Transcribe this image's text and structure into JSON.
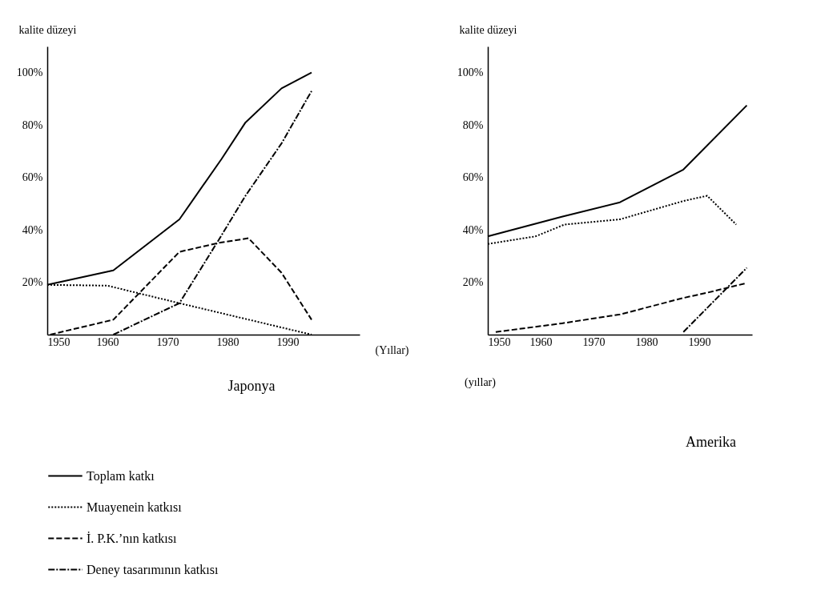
{
  "chart_data": [
    {
      "type": "line",
      "title": "Japonya",
      "xlabel": "(Yıllar)",
      "ylabel": "kalite düzeyi",
      "xlim": [
        1950,
        2002
      ],
      "ylim": [
        0,
        110
      ],
      "xticks": [
        1950,
        1960,
        1970,
        1980,
        1990
      ],
      "yticks": [
        {
          "value": 20,
          "label": "20%"
        },
        {
          "value": 40,
          "label": "40%"
        },
        {
          "value": 60,
          "label": "60%"
        },
        {
          "value": 80,
          "label": "80%"
        },
        {
          "value": 100,
          "label": "100%"
        }
      ],
      "grid": false,
      "legend": "bottom",
      "series": [
        {
          "name": "Toplam katkı",
          "color": "#000000",
          "line_style": "solid",
          "x": [
            1950,
            1961,
            1972,
            1979,
            1983,
            1989,
            1994
          ],
          "values": [
            19,
            24.5,
            44,
            67,
            81,
            94,
            100
          ]
        },
        {
          "name": "Muayenein katkısı",
          "color": "#000000",
          "line_style": "dotted",
          "x": [
            1950,
            1960,
            1972,
            1983,
            1994
          ],
          "values": [
            19,
            18.7,
            12,
            6,
            0
          ]
        },
        {
          "name": "İ. P.K.’nın katkısı",
          "color": "#000000",
          "line_style": "dashed",
          "x": [
            1950.5,
            1961,
            1972,
            1978.5,
            1983.5,
            1989,
            1994
          ],
          "values": [
            0,
            5.7,
            31.6,
            35,
            36.8,
            23.6,
            5.7
          ]
        },
        {
          "name": "Deney tasarımının katkısı",
          "color": "#000000",
          "line_style": "dashdot",
          "x": [
            1961,
            1972,
            1978.5,
            1983,
            1989,
            1994
          ],
          "values": [
            0,
            12,
            36,
            53,
            73,
            93
          ]
        }
      ]
    },
    {
      "type": "line",
      "title": "Amerika",
      "xlabel": "(yıllar)",
      "ylabel": "kalite düzeyi",
      "xlim": [
        1950,
        2000
      ],
      "ylim": [
        0,
        110
      ],
      "xticks": [
        1950,
        1960,
        1970,
        1980,
        1990
      ],
      "yticks": [
        {
          "value": 20,
          "label": "20%"
        },
        {
          "value": 40,
          "label": "40%"
        },
        {
          "value": 60,
          "label": "60%"
        },
        {
          "value": 80,
          "label": "80%"
        },
        {
          "value": 100,
          "label": "100%"
        }
      ],
      "grid": false,
      "legend": "bottom",
      "series": [
        {
          "name": "Toplam katkı",
          "color": "#000000",
          "line_style": "solid",
          "x": [
            1950,
            1964,
            1975,
            1987,
            1999
          ],
          "values": [
            37.5,
            45,
            50.5,
            63,
            87.5
          ]
        },
        {
          "name": "Muayenein katkısı",
          "color": "#000000",
          "line_style": "dotted",
          "x": [
            1950,
            1959,
            1964.5,
            1975,
            1987,
            1991.5,
            1997
          ],
          "values": [
            34.6,
            37.5,
            42,
            44,
            51,
            53,
            42
          ]
        },
        {
          "name": "İ. P.K.’nın katkısı",
          "color": "#000000",
          "line_style": "dashed",
          "x": [
            1951.5,
            1964,
            1975,
            1987,
            1991.5,
            1999
          ],
          "values": [
            1,
            4.3,
            7.7,
            14,
            16,
            19.7
          ]
        },
        {
          "name": "Deney tasarımının katkısı",
          "color": "#000000",
          "line_style": "dashdot",
          "x": [
            1987,
            1999
          ],
          "values": [
            1,
            25.5
          ]
        }
      ]
    }
  ]
}
